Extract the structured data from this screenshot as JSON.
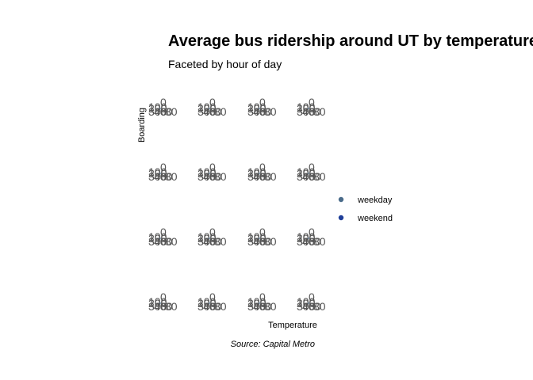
{
  "chart_data": {
    "type": "scatter",
    "title": "Average bus ridership around UT by temperature",
    "subtitle": "Faceted by hour of day",
    "xlabel": "Temperature",
    "ylabel": "Boarding",
    "caption": "Source: Capital Metro",
    "legend_position": "right",
    "series": [
      {
        "name": "weekday",
        "color": "#4a6b8a"
      },
      {
        "name": "weekend",
        "color": "#1f3f99"
      }
    ],
    "facet_grid": {
      "rows": 4,
      "cols": 4
    },
    "panel_tick_text": [
      "0",
      "100",
      "200",
      "300",
      "40",
      "60",
      "80"
    ]
  }
}
